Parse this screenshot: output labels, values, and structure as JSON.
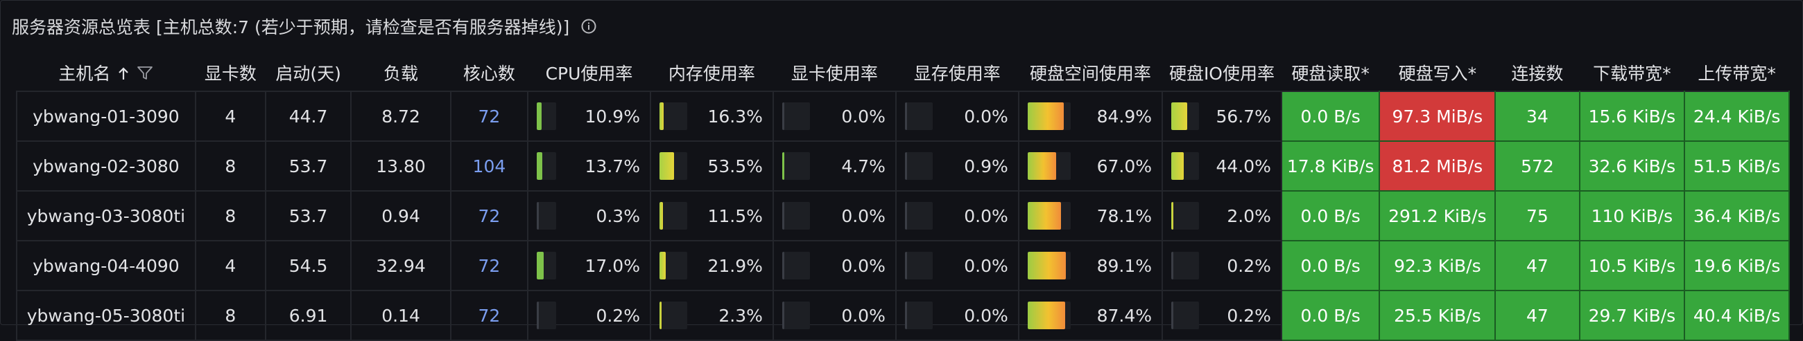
{
  "panel": {
    "title": "服务器资源总览表 [主机总数:7 (若少于预期，请检查是否有服务器掉线)]",
    "info_icon": "info-circle-icon"
  },
  "table": {
    "columns": [
      {
        "label": "主机名",
        "sort_icon": "arrow-up-icon",
        "filter_icon": "filter-icon"
      },
      {
        "label": "显卡数"
      },
      {
        "label": "启动(天)"
      },
      {
        "label": "负载"
      },
      {
        "label": "核心数"
      },
      {
        "label": "CPU使用率"
      },
      {
        "label": "内存使用率"
      },
      {
        "label": "显卡使用率"
      },
      {
        "label": "显存使用率"
      },
      {
        "label": "硬盘空间使用率"
      },
      {
        "label": "硬盘IO使用率"
      },
      {
        "label": "硬盘读取*"
      },
      {
        "label": "硬盘写入*"
      },
      {
        "label": "连接数"
      },
      {
        "label": "下载带宽*"
      },
      {
        "label": "上传带宽*"
      }
    ],
    "rows": [
      {
        "host": "ybwang-01-3090",
        "gpus": "4",
        "uptime": "44.7",
        "load": "8.72",
        "cores": "72",
        "cpu": "10.9%",
        "cpu_level": 0.109,
        "mem": "16.3%",
        "mem_level": 0.163,
        "gpu_util": "0.0%",
        "gpu_level": 0.0,
        "vram": "0.0%",
        "vram_level": 0.0,
        "disk": "84.9%",
        "disk_level": 0.849,
        "io": "56.7%",
        "io_level": 0.567,
        "read": "0.0 B/s",
        "write": "97.3 MiB/s",
        "write_status": "red",
        "conns": "34",
        "down": "15.6 KiB/s",
        "up": "24.4 KiB/s"
      },
      {
        "host": "ybwang-02-3080",
        "gpus": "8",
        "uptime": "53.7",
        "load": "13.80",
        "cores": "104",
        "cpu": "13.7%",
        "cpu_level": 0.137,
        "mem": "53.5%",
        "mem_level": 0.535,
        "gpu_util": "4.7%",
        "gpu_level": 0.047,
        "vram": "0.9%",
        "vram_level": 0.009,
        "disk": "67.0%",
        "disk_level": 0.67,
        "io": "44.0%",
        "io_level": 0.44,
        "read": "17.8 KiB/s",
        "write": "81.2 MiB/s",
        "write_status": "red",
        "conns": "572",
        "down": "32.6 KiB/s",
        "up": "51.5 KiB/s"
      },
      {
        "host": "ybwang-03-3080ti",
        "gpus": "8",
        "uptime": "53.7",
        "load": "0.94",
        "cores": "72",
        "cpu": "0.3%",
        "cpu_level": 0.003,
        "mem": "11.5%",
        "mem_level": 0.115,
        "gpu_util": "0.0%",
        "gpu_level": 0.0,
        "vram": "0.0%",
        "vram_level": 0.0,
        "disk": "78.1%",
        "disk_level": 0.781,
        "io": "2.0%",
        "io_level": 0.02,
        "read": "0.0 B/s",
        "write": "291.2 KiB/s",
        "write_status": "green",
        "conns": "75",
        "down": "110 KiB/s",
        "up": "36.4 KiB/s"
      },
      {
        "host": "ybwang-04-4090",
        "gpus": "4",
        "uptime": "54.5",
        "load": "32.94",
        "cores": "72",
        "cpu": "17.0%",
        "cpu_level": 0.17,
        "mem": "21.9%",
        "mem_level": 0.219,
        "gpu_util": "0.0%",
        "gpu_level": 0.0,
        "vram": "0.0%",
        "vram_level": 0.0,
        "disk": "89.1%",
        "disk_level": 0.891,
        "io": "0.2%",
        "io_level": 0.002,
        "read": "0.0 B/s",
        "write": "92.3 KiB/s",
        "write_status": "green",
        "conns": "47",
        "down": "10.5 KiB/s",
        "up": "19.6 KiB/s"
      },
      {
        "host": "ybwang-05-3080ti",
        "gpus": "8",
        "uptime": "6.91",
        "load": "0.14",
        "cores": "72",
        "cpu": "0.2%",
        "cpu_level": 0.002,
        "mem": "2.3%",
        "mem_level": 0.023,
        "gpu_util": "0.0%",
        "gpu_level": 0.0,
        "vram": "0.0%",
        "vram_level": 0.0,
        "disk": "87.4%",
        "disk_level": 0.874,
        "io": "0.2%",
        "io_level": 0.002,
        "read": "0.0 B/s",
        "write": "25.5 KiB/s",
        "write_status": "green",
        "conns": "47",
        "down": "29.7 KiB/s",
        "up": "40.4 KiB/s"
      }
    ]
  },
  "colors": {
    "background": "#111217",
    "green": "#37a73c",
    "red": "#d23a3a",
    "cores_blue": "#7b9ef0",
    "gauge_green": "#7ec24a"
  }
}
